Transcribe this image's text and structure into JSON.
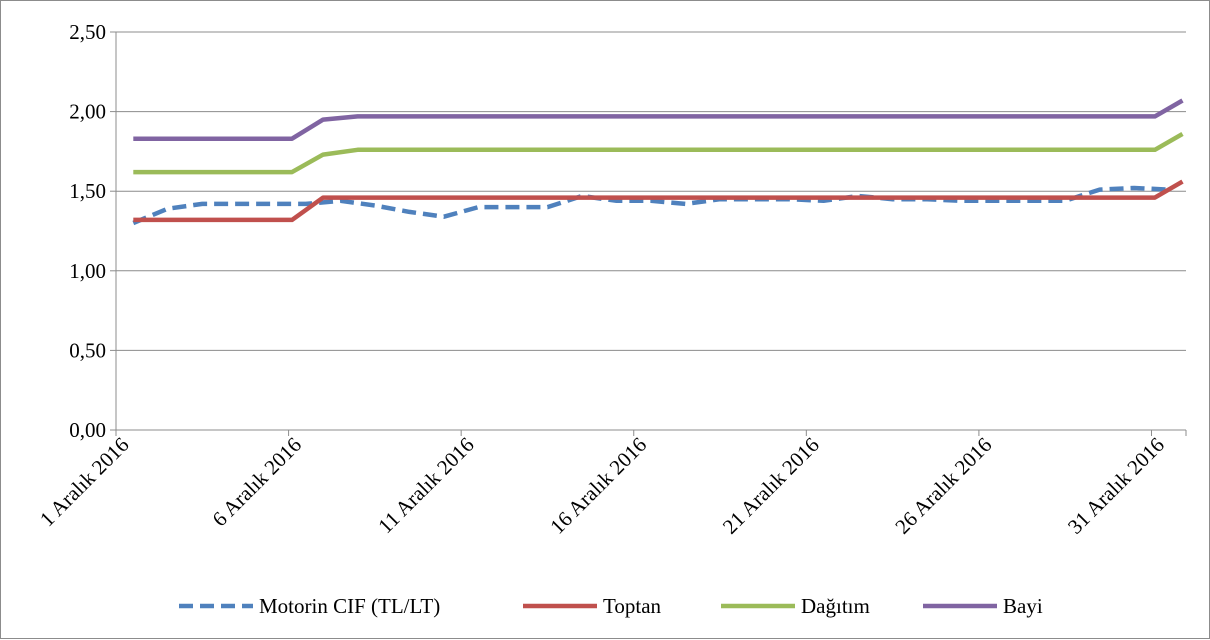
{
  "chart_data": {
    "type": "line",
    "title": "",
    "xlabel": "",
    "ylabel": "",
    "ylim": [
      0,
      2.5
    ],
    "y_ticks": [
      "0,00",
      "0,50",
      "1,00",
      "1,50",
      "2,00",
      "2,50"
    ],
    "x_tick_labels": [
      "1 Aralık 2016",
      "6 Aralık 2016",
      "11 Aralık 2016",
      "16 Aralık 2016",
      "21 Aralık 2016",
      "26 Aralık 2016",
      "31 Aralık 2016"
    ],
    "x_tick_days": [
      1,
      6,
      11,
      16,
      21,
      26,
      31
    ],
    "grid": true,
    "legend_position": "bottom",
    "series": [
      {
        "name": "Motorin CIF (TL/LT)",
        "color": "#4f81bd",
        "style": "dashed",
        "points": [
          [
            1,
            1.3
          ],
          [
            2,
            1.39
          ],
          [
            3,
            1.42
          ],
          [
            4,
            1.42
          ],
          [
            5,
            1.42
          ],
          [
            6,
            1.42
          ],
          [
            7,
            1.44
          ],
          [
            8,
            1.41
          ],
          [
            9,
            1.37
          ],
          [
            10,
            1.34
          ],
          [
            11,
            1.4
          ],
          [
            12,
            1.4
          ],
          [
            13,
            1.4
          ],
          [
            14,
            1.47
          ],
          [
            15,
            1.44
          ],
          [
            16,
            1.44
          ],
          [
            17,
            1.42
          ],
          [
            18,
            1.45
          ],
          [
            19,
            1.45
          ],
          [
            20,
            1.45
          ],
          [
            21,
            1.44
          ],
          [
            22,
            1.47
          ],
          [
            23,
            1.45
          ],
          [
            24,
            1.45
          ],
          [
            25,
            1.44
          ],
          [
            26,
            1.44
          ],
          [
            27,
            1.44
          ],
          [
            28,
            1.44
          ],
          [
            29,
            1.51
          ],
          [
            30,
            1.52
          ],
          [
            31,
            1.51
          ]
        ]
      },
      {
        "name": "Toptan",
        "color": "#c0504d",
        "style": "solid",
        "points": [
          [
            1,
            1.32
          ],
          [
            5.6,
            1.32
          ],
          [
            6.5,
            1.46
          ],
          [
            30.6,
            1.46
          ],
          [
            31.4,
            1.56
          ]
        ]
      },
      {
        "name": "Dağıtım",
        "color": "#9bbb59",
        "style": "solid",
        "points": [
          [
            1,
            1.62
          ],
          [
            5.6,
            1.62
          ],
          [
            6.5,
            1.73
          ],
          [
            7.5,
            1.76
          ],
          [
            30.6,
            1.76
          ],
          [
            31.4,
            1.86
          ]
        ]
      },
      {
        "name": "Bayi",
        "color": "#8064a2",
        "style": "solid",
        "points": [
          [
            1,
            1.83
          ],
          [
            5.6,
            1.83
          ],
          [
            6.5,
            1.95
          ],
          [
            7.5,
            1.97
          ],
          [
            30.6,
            1.97
          ],
          [
            31.4,
            2.07
          ]
        ]
      }
    ]
  }
}
